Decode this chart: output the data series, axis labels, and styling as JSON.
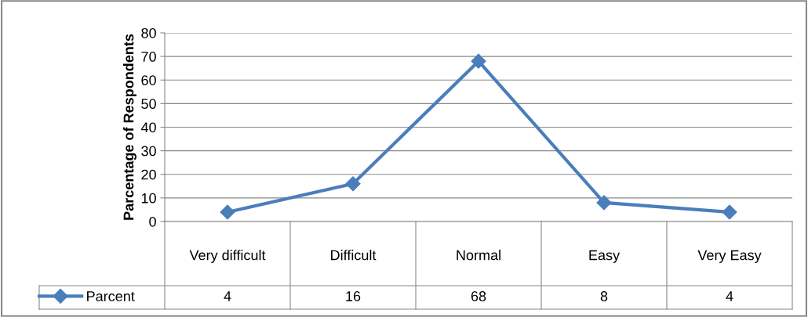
{
  "chart_data": {
    "type": "line",
    "ylabel": "Parcentage of Respondents",
    "categories": [
      "Very difficult",
      "Difficult",
      "Normal",
      "Easy",
      "Very Easy"
    ],
    "series": [
      {
        "name": "Parcent",
        "color": "#4a7ebb",
        "values": [
          4,
          16,
          68,
          8,
          4
        ]
      }
    ],
    "ylim": [
      0,
      80
    ],
    "yticks": [
      0,
      10,
      20,
      30,
      40,
      50,
      60,
      70,
      80
    ],
    "grid": "y",
    "legend": "bottom left",
    "marker": "diamond",
    "line_style": "solid",
    "data_labels": true
  }
}
